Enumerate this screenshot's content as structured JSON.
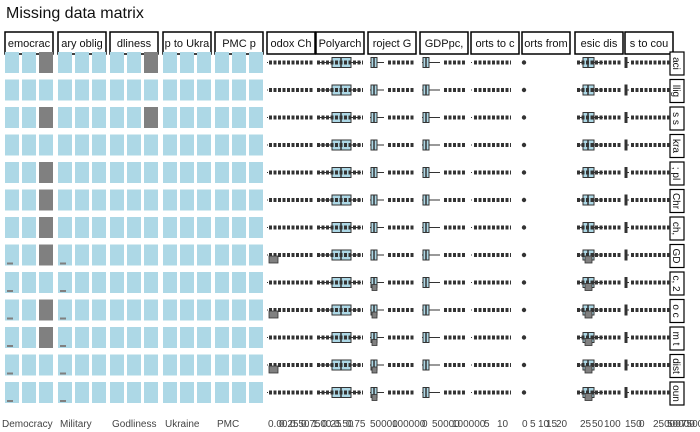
{
  "chart_data": {
    "type": "heatmap",
    "title": "Missing data matrix",
    "xlabel": "",
    "ylabel": "",
    "legend": "none",
    "colors": {
      "present": "#add8e6",
      "missing": "#808080",
      "box_fill": "#add8e6",
      "outline": "#333333",
      "strip_bg": "#ffffff",
      "strip_border": "#000000"
    },
    "column_labels": [
      "emocrac",
      "ary oblig",
      "dliness",
      "p to Ukra",
      "PMC p",
      "odox Ch",
      "Polyarch",
      "roject G",
      "GDPpc,",
      "orts to c",
      "orts from",
      "esic dis",
      "s to cou"
    ],
    "row_labels": [
      "aci",
      "llig",
      "s s",
      "kra",
      "; pl",
      "Chr",
      "ch,",
      "GD",
      "c, 2",
      "o c",
      "m t",
      "dist",
      "oun"
    ],
    "x_tick_text": [
      "Democracy",
      "Military",
      "Godliness",
      "Ukraine",
      "PMC",
      "0.00",
      "0.25",
      "0.50",
      "0.75",
      "1.00",
      "0.25",
      "0.50",
      "0.75",
      "50000",
      "100000",
      "0",
      "50000",
      "100000",
      "5",
      "10",
      "0",
      "5",
      "10",
      "15",
      "20",
      "25",
      "50",
      "100",
      "150",
      "0",
      "25000",
      "50000",
      "75000",
      "100000"
    ]
  }
}
